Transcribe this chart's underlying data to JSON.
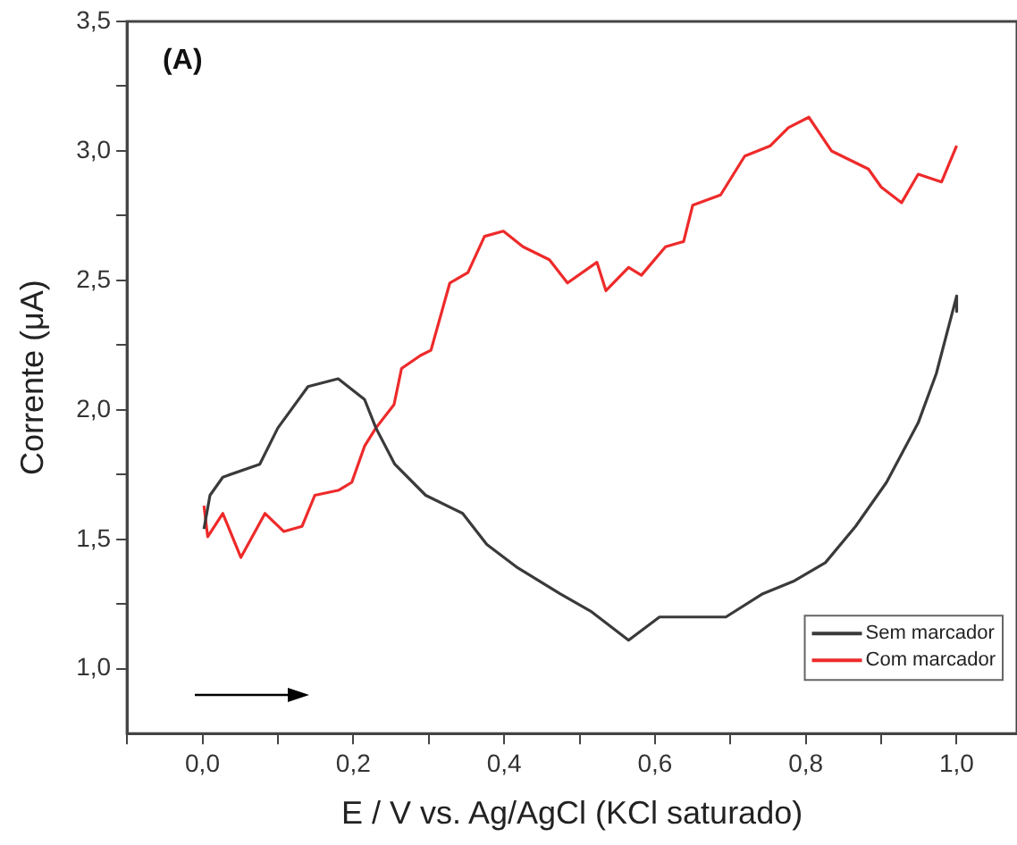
{
  "chart_data": {
    "type": "line",
    "xlabel": "E / V vs. Ag/AgCl (KCl saturado)",
    "ylabel": "Corrente (μA)",
    "annotations": [
      "(A)"
    ],
    "xlim": [
      -0.1,
      1.08
    ],
    "ylim": [
      0.75,
      3.5
    ],
    "xticks": [
      {
        "value": -0.1,
        "label": null
      },
      {
        "value": 0,
        "label": "0,0"
      },
      {
        "value": 0.1,
        "label": null
      },
      {
        "value": 0.2,
        "label": "0,2"
      },
      {
        "value": 0.3,
        "label": null
      },
      {
        "value": 0.4,
        "label": "0,4"
      },
      {
        "value": 0.5,
        "label": null
      },
      {
        "value": 0.6,
        "label": "0,6"
      },
      {
        "value": 0.7,
        "label": null
      },
      {
        "value": 0.8,
        "label": "0,8"
      },
      {
        "value": 0.9,
        "label": null
      },
      {
        "value": 1.0,
        "label": "1,0"
      }
    ],
    "yticks": [
      {
        "value": 1.0,
        "label": "1,0"
      },
      {
        "value": 1.25,
        "label": null
      },
      {
        "value": 1.5,
        "label": "1,5"
      },
      {
        "value": 1.75,
        "label": null
      },
      {
        "value": 2.0,
        "label": "2,0"
      },
      {
        "value": 2.25,
        "label": null
      },
      {
        "value": 2.5,
        "label": "2,5"
      },
      {
        "value": 2.75,
        "label": null
      },
      {
        "value": 3.0,
        "label": "3,0"
      },
      {
        "value": 3.25,
        "label": null
      },
      {
        "value": 3.5,
        "label": "3,5"
      }
    ],
    "grid": false,
    "legend": "bottom right",
    "marker": "none",
    "line_style": "solid",
    "series": [
      {
        "name": "Sem marcador",
        "color": "#3a3a3a",
        "x": [
          0.002,
          0.01,
          0.027,
          0.076,
          0.1,
          0.14,
          0.18,
          0.215,
          0.23,
          0.255,
          0.296,
          0.345,
          0.377,
          0.418,
          0.474,
          0.516,
          0.565,
          0.606,
          0.655,
          0.694,
          0.743,
          0.785,
          0.826,
          0.866,
          0.907,
          0.949,
          0.973,
          1.0,
          1.0
        ],
        "values": [
          1.54,
          1.67,
          1.74,
          1.79,
          1.93,
          2.09,
          2.12,
          2.04,
          1.93,
          1.79,
          1.67,
          1.6,
          1.48,
          1.39,
          1.29,
          1.22,
          1.11,
          1.2,
          1.2,
          1.2,
          1.29,
          1.34,
          1.41,
          1.55,
          1.72,
          1.95,
          2.14,
          2.44,
          2.38
        ]
      },
      {
        "name": "Com marcador",
        "color": "#ee2a2a",
        "x": [
          0.002,
          0.007,
          0.027,
          0.051,
          0.083,
          0.108,
          0.132,
          0.149,
          0.181,
          0.198,
          0.215,
          0.23,
          0.254,
          0.264,
          0.289,
          0.303,
          0.328,
          0.352,
          0.374,
          0.399,
          0.425,
          0.46,
          0.484,
          0.523,
          0.535,
          0.565,
          0.582,
          0.614,
          0.638,
          0.65,
          0.687,
          0.719,
          0.753,
          0.777,
          0.804,
          0.834,
          0.883,
          0.9,
          0.927,
          0.949,
          0.98,
          1.0
        ],
        "values": [
          1.63,
          1.51,
          1.6,
          1.43,
          1.6,
          1.53,
          1.55,
          1.67,
          1.69,
          1.72,
          1.86,
          1.93,
          2.02,
          2.16,
          2.21,
          2.23,
          2.49,
          2.53,
          2.67,
          2.69,
          2.63,
          2.58,
          2.49,
          2.57,
          2.46,
          2.55,
          2.52,
          2.63,
          2.65,
          2.79,
          2.83,
          2.98,
          3.02,
          3.09,
          3.13,
          3.0,
          2.93,
          2.86,
          2.8,
          2.91,
          2.88,
          3.02
        ]
      }
    ]
  }
}
